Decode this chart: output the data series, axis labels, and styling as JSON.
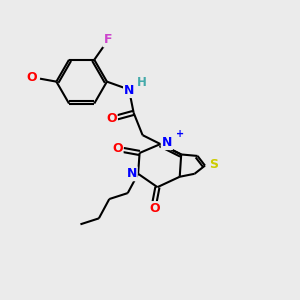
{
  "background_color": "#ebebeb",
  "bond_color": "#000000",
  "atom_colors": {
    "O": "#ff0000",
    "N": "#0000ff",
    "N+": "#0000ff",
    "S": "#cccc00",
    "F": "#cc44cc",
    "H": "#44aaaa",
    "C": "#000000"
  },
  "figsize": [
    3.0,
    3.0
  ],
  "dpi": 100
}
